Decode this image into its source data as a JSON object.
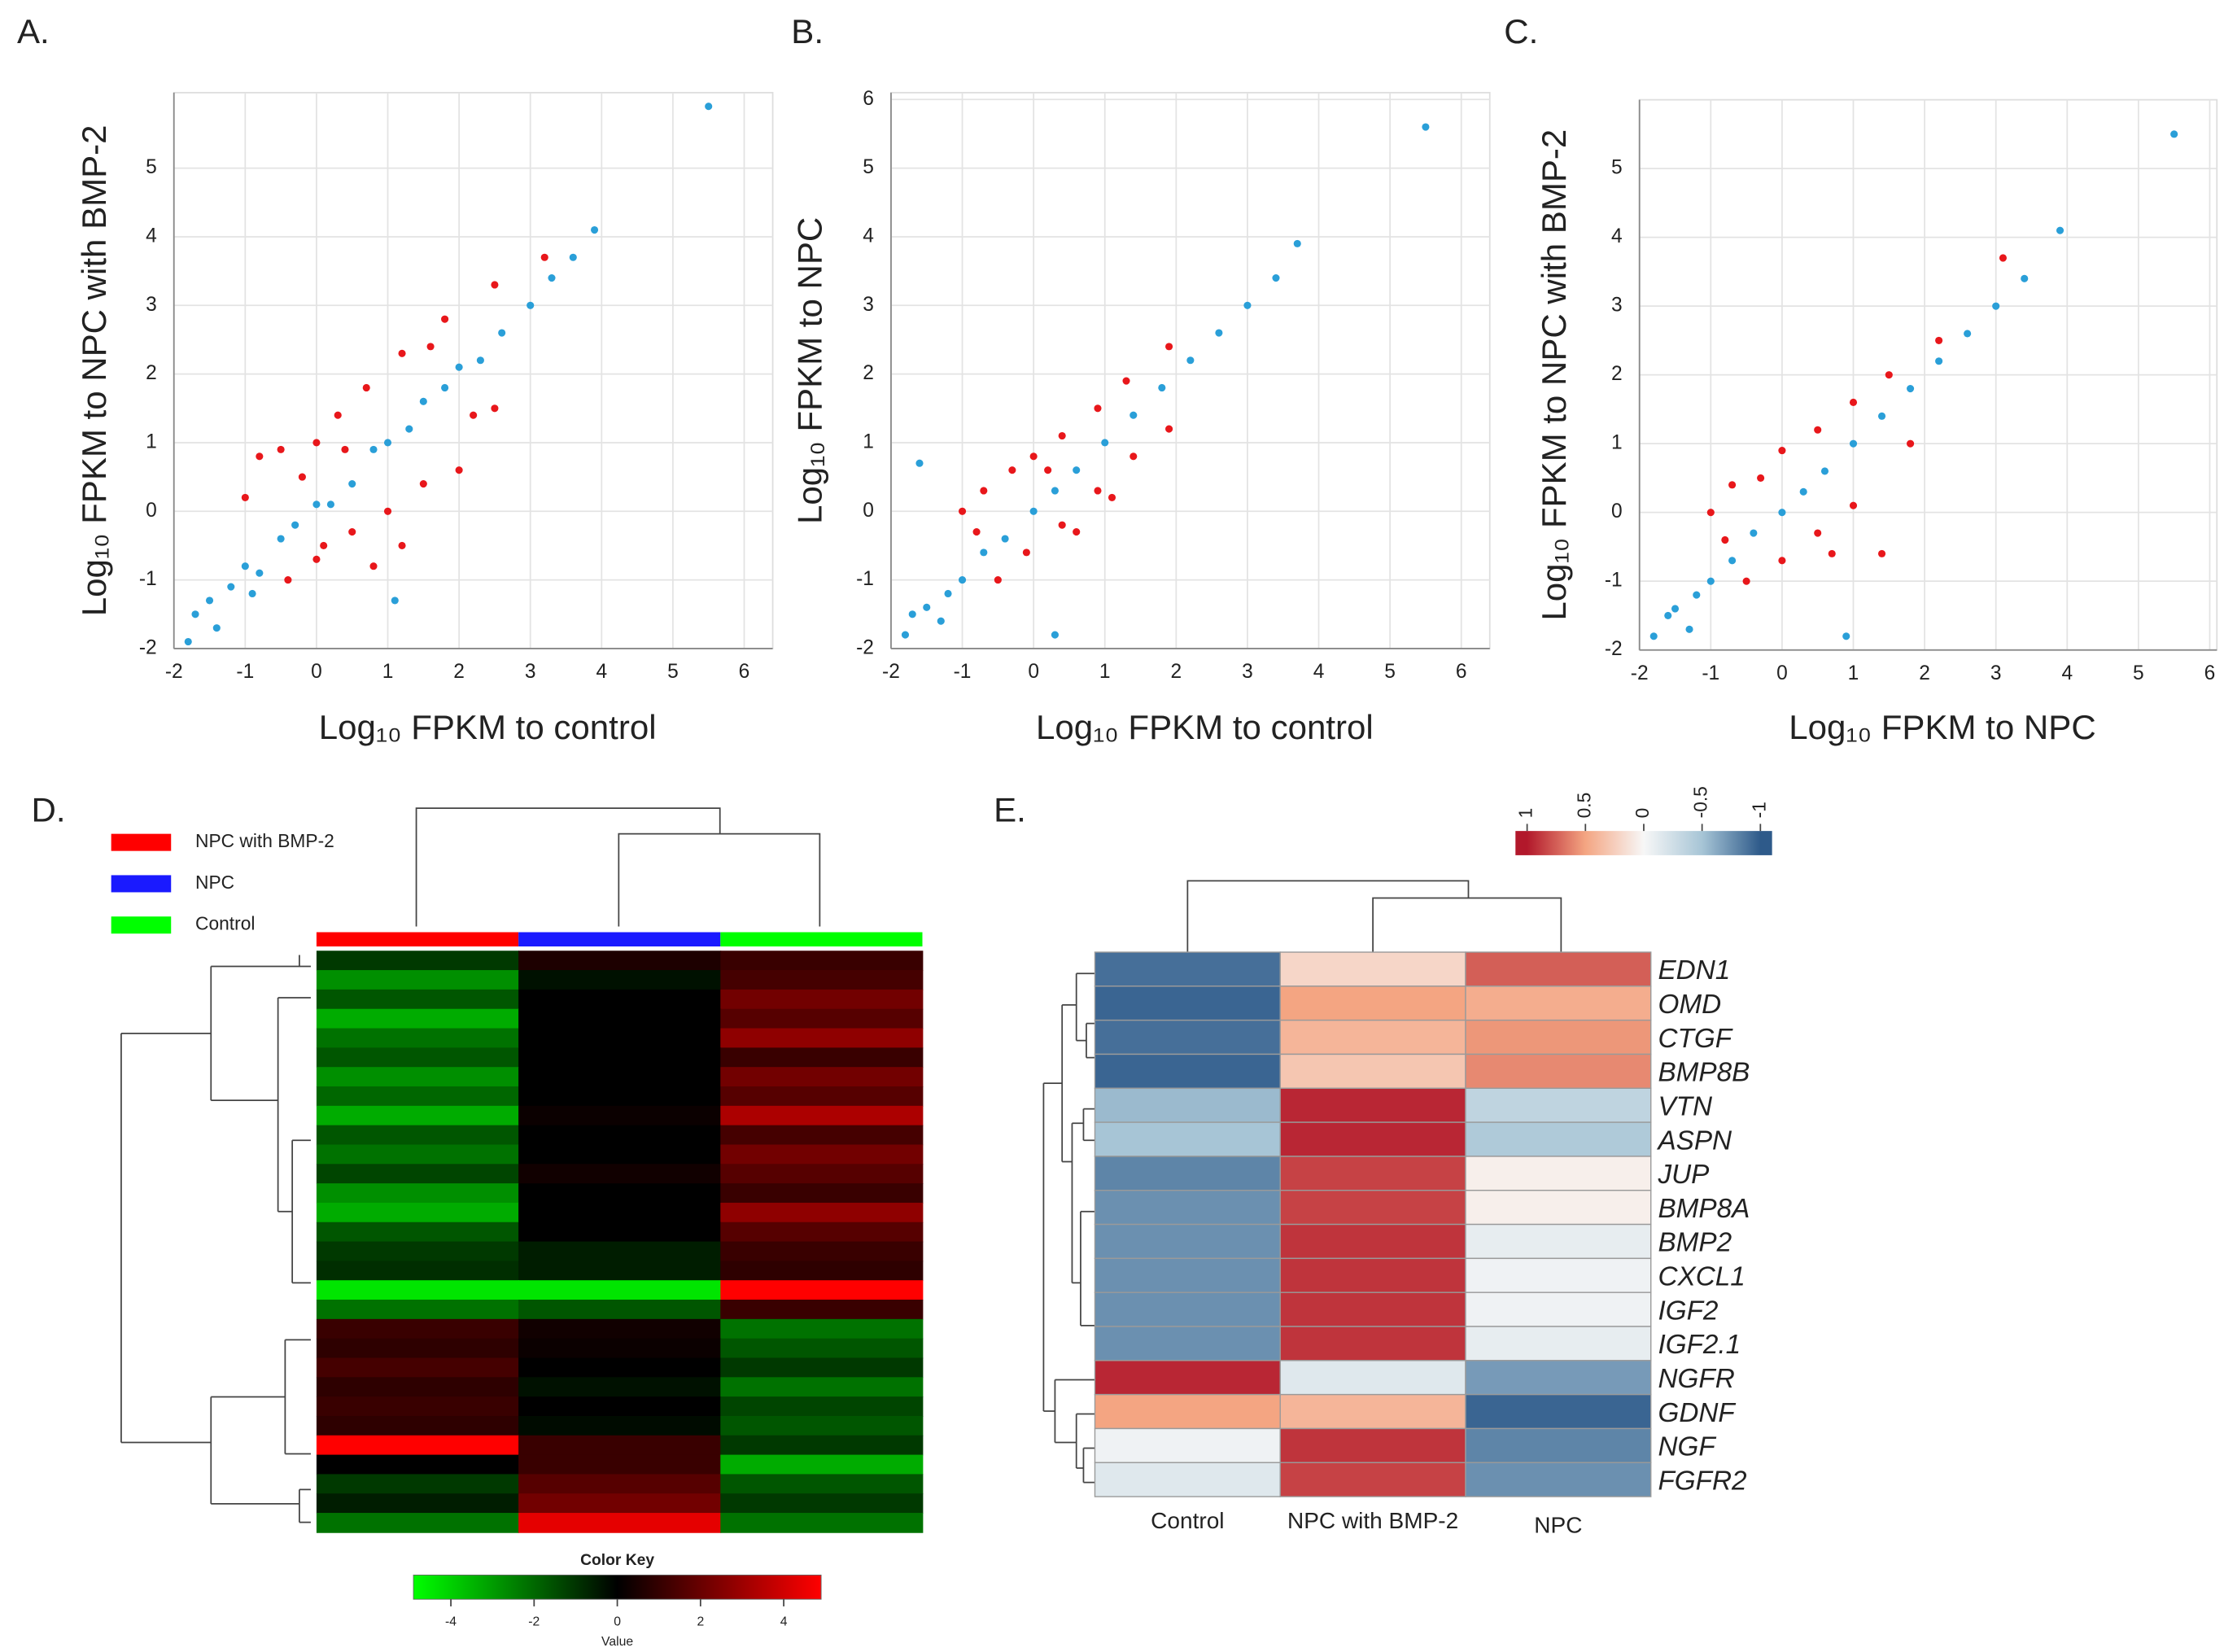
{
  "chart_data": [
    {
      "type": "scatter",
      "label": "A.",
      "xlabel": "Log₁₀ FPKM to control",
      "ylabel": "Log₁₀ FPKM to NPC with BMP-2",
      "xlim": [
        -2,
        6.4
      ],
      "ylim": [
        -2,
        6.1
      ],
      "xticks": [
        -2,
        -1,
        0,
        1,
        2,
        3,
        4,
        5,
        6
      ],
      "yticks": [
        -2,
        -1,
        0,
        1,
        2,
        3,
        4,
        5
      ],
      "grid": true,
      "series": [
        {
          "color": "#e8171b",
          "x": [
            -1,
            -0.8,
            -0.5,
            0,
            0.3,
            0.7,
            1.2,
            1.8,
            2.5,
            3.2,
            -0.4,
            0,
            0.5,
            1,
            1.5,
            2,
            2.5,
            1.2,
            0.8,
            -0.2,
            0.4,
            1.6,
            2.2,
            0.1
          ],
          "values": [
            0.2,
            0.8,
            0.9,
            1,
            1.4,
            1.8,
            2.3,
            2.8,
            3.3,
            3.7,
            -1,
            -0.7,
            -0.3,
            0,
            0.4,
            0.6,
            1.5,
            -0.5,
            -0.8,
            0.5,
            0.9,
            2.4,
            1.4,
            -0.5
          ]
        },
        {
          "color": "#2a9fd8",
          "x": [
            -1.8,
            -1.5,
            -1.2,
            -1,
            -0.8,
            -0.5,
            -0.3,
            0,
            0.2,
            0.5,
            0.8,
            1,
            1.3,
            1.5,
            1.8,
            2,
            2.3,
            2.6,
            3,
            3.3,
            3.6,
            3.9,
            5.5,
            1.1,
            -1.7,
            -1.4,
            -0.9
          ],
          "values": [
            -1.9,
            -1.3,
            -1.1,
            -0.8,
            -0.9,
            -0.4,
            -0.2,
            0.1,
            0.1,
            0.4,
            0.9,
            1,
            1.2,
            1.6,
            1.8,
            2.1,
            2.2,
            2.6,
            3,
            3.4,
            3.7,
            4.1,
            5.9,
            -1.3,
            -1.5,
            -1.7,
            -1.2
          ]
        }
      ]
    },
    {
      "type": "scatter",
      "label": "B.",
      "xlabel": "Log₁₀ FPKM to control",
      "ylabel": "Log₁₀ FPKM to NPC",
      "xlim": [
        -2,
        6.4
      ],
      "ylim": [
        -2,
        6.1
      ],
      "xticks": [
        -2,
        -1,
        0,
        1,
        2,
        3,
        4,
        5,
        6
      ],
      "yticks": [
        -2,
        -1,
        0,
        1,
        2,
        3,
        4,
        5,
        6
      ],
      "grid": true,
      "series": [
        {
          "color": "#e8171b",
          "x": [
            -1,
            -0.7,
            -0.3,
            0,
            0.4,
            0.9,
            1.3,
            1.9,
            -0.5,
            -0.1,
            0.4,
            0.9,
            1.4,
            1.9,
            0.6,
            0.2,
            -0.8,
            1.1
          ],
          "values": [
            0,
            0.3,
            0.6,
            0.8,
            1.1,
            1.5,
            1.9,
            2.4,
            -1,
            -0.6,
            -0.2,
            0.3,
            0.8,
            1.2,
            -0.3,
            0.6,
            -0.3,
            0.2
          ]
        },
        {
          "color": "#2a9fd8",
          "x": [
            -1.8,
            -1.5,
            -1.2,
            -1,
            -0.7,
            -0.4,
            0,
            0.3,
            0.6,
            1,
            1.4,
            1.8,
            2.2,
            2.6,
            3,
            3.4,
            3.7,
            5.5,
            -1.6,
            0.3,
            -1.7,
            -1.3
          ],
          "values": [
            -1.8,
            -1.4,
            -1.2,
            -1,
            -0.6,
            -0.4,
            0,
            0.3,
            0.6,
            1,
            1.4,
            1.8,
            2.2,
            2.6,
            3,
            3.4,
            3.9,
            5.6,
            0.7,
            -1.8,
            -1.5,
            -1.6
          ]
        }
      ]
    },
    {
      "type": "scatter",
      "label": "C.",
      "xlabel": "Log₁₀ FPKM to NPC",
      "ylabel": "Log₁₀ FPKM to NPC with BMP-2",
      "xlim": [
        -2,
        6.1
      ],
      "ylim": [
        -2,
        6
      ],
      "xticks": [
        -2,
        -1,
        0,
        1,
        2,
        3,
        4,
        5,
        6
      ],
      "yticks": [
        -2,
        -1,
        0,
        1,
        2,
        3,
        4,
        5
      ],
      "grid": true,
      "series": [
        {
          "color": "#e8171b",
          "x": [
            -1,
            -0.7,
            -0.3,
            0,
            0.5,
            1,
            1.5,
            2.2,
            3.1,
            -0.5,
            0,
            0.5,
            1,
            1.4,
            0.7,
            -0.8,
            1.8
          ],
          "values": [
            0,
            0.4,
            0.5,
            0.9,
            1.2,
            1.6,
            2,
            2.5,
            3.7,
            -1,
            -0.7,
            -0.3,
            0.1,
            -0.6,
            -0.6,
            -0.4,
            1
          ]
        },
        {
          "color": "#2a9fd8",
          "x": [
            -1.8,
            -1.5,
            -1.2,
            -1,
            -0.7,
            -0.4,
            0,
            0.3,
            0.6,
            1,
            1.4,
            1.8,
            2.2,
            2.6,
            3,
            3.4,
            3.9,
            5.5,
            0.9,
            -1.6,
            -1.3
          ],
          "values": [
            -1.8,
            -1.4,
            -1.2,
            -1,
            -0.7,
            -0.3,
            0,
            0.3,
            0.6,
            1,
            1.4,
            1.8,
            2.2,
            2.6,
            3,
            3.4,
            4.1,
            5.5,
            -1.8,
            -1.5,
            -1.7
          ]
        }
      ]
    },
    {
      "type": "heatmap",
      "label": "D.",
      "columns": [
        {
          "name": "NPC with BMP-2",
          "color": "#ff0000"
        },
        {
          "name": "NPC",
          "color": "#1a1aff"
        },
        {
          "name": "Control",
          "color": "#00ff00"
        }
      ],
      "values": [
        [
          -1,
          0.5,
          1
        ],
        [
          -2.5,
          -0.3,
          1.2
        ],
        [
          -1.5,
          0,
          2
        ],
        [
          -3,
          0,
          1.5
        ],
        [
          -2,
          0,
          2.5
        ],
        [
          -1.5,
          0,
          1
        ],
        [
          -2.5,
          0,
          2
        ],
        [
          -1.8,
          0,
          1.5
        ],
        [
          -3,
          0.2,
          3
        ],
        [
          -1.5,
          0,
          1.2
        ],
        [
          -2,
          0,
          2
        ],
        [
          -1.2,
          0.3,
          1.5
        ],
        [
          -2.5,
          0,
          1
        ],
        [
          -3,
          0,
          2.5
        ],
        [
          -1.5,
          0,
          1.5
        ],
        [
          -1,
          -0.5,
          1
        ],
        [
          -0.8,
          -0.5,
          0.8
        ],
        [
          -4,
          -4,
          4.5
        ],
        [
          -2,
          -1.5,
          1
        ],
        [
          1,
          0.3,
          -2
        ],
        [
          0.8,
          0.2,
          -1.5
        ],
        [
          1.2,
          0,
          -1
        ],
        [
          0.8,
          -0.3,
          -2
        ],
        [
          1,
          0,
          -1.2
        ],
        [
          0.8,
          -0.2,
          -1.5
        ],
        [
          4.5,
          1,
          -1
        ],
        [
          0,
          1,
          -3
        ],
        [
          -1,
          1.5,
          -1.5
        ],
        [
          -0.5,
          2,
          -1
        ],
        [
          -2,
          4,
          -2
        ]
      ],
      "color_key": {
        "title": "Color Key",
        "xlabel": "Value",
        "lim": [
          -4.9,
          4.9
        ],
        "ticks": [
          -4,
          -2,
          0,
          2,
          4
        ],
        "colors": [
          "#00ff00",
          "#000000",
          "#ff0000"
        ]
      }
    },
    {
      "type": "heatmap",
      "label": "E.",
      "columns": [
        "Control",
        "NPC with BMP-2",
        "NPC"
      ],
      "rows": [
        "EDN1",
        "OMD",
        "CTGF",
        "BMP8B",
        "VTN",
        "ASPN",
        "JUP",
        "BMP8A",
        "BMP2",
        "CXCL1",
        "IGF2",
        "IGF2.1",
        "NGFR",
        "GDNF",
        "NGF",
        "FGFR2"
      ],
      "values": [
        [
          -0.9,
          0.2,
          0.75
        ],
        [
          -0.95,
          0.5,
          0.45
        ],
        [
          -0.9,
          0.4,
          0.55
        ],
        [
          -0.95,
          0.3,
          0.6
        ],
        [
          -0.55,
          0.95,
          -0.35
        ],
        [
          -0.5,
          0.95,
          -0.45
        ],
        [
          -0.8,
          0.85,
          0.05
        ],
        [
          -0.75,
          0.85,
          0.05
        ],
        [
          -0.75,
          0.9,
          -0.1
        ],
        [
          -0.75,
          0.9,
          -0.05
        ],
        [
          -0.75,
          0.9,
          -0.05
        ],
        [
          -0.75,
          0.9,
          -0.1
        ],
        [
          0.95,
          -0.15,
          -0.7
        ],
        [
          0.5,
          0.4,
          -0.95
        ],
        [
          -0.05,
          0.9,
          -0.8
        ],
        [
          -0.15,
          0.85,
          -0.75
        ]
      ],
      "color_key": {
        "lim": [
          1.1,
          -1.1
        ],
        "ticks": [
          1,
          0.5,
          0,
          -0.5,
          -1
        ],
        "colors": [
          "#b2182b",
          "#f4a582",
          "#f7f7f7",
          "#a7c5d6",
          "#2e5a8a"
        ]
      }
    }
  ]
}
